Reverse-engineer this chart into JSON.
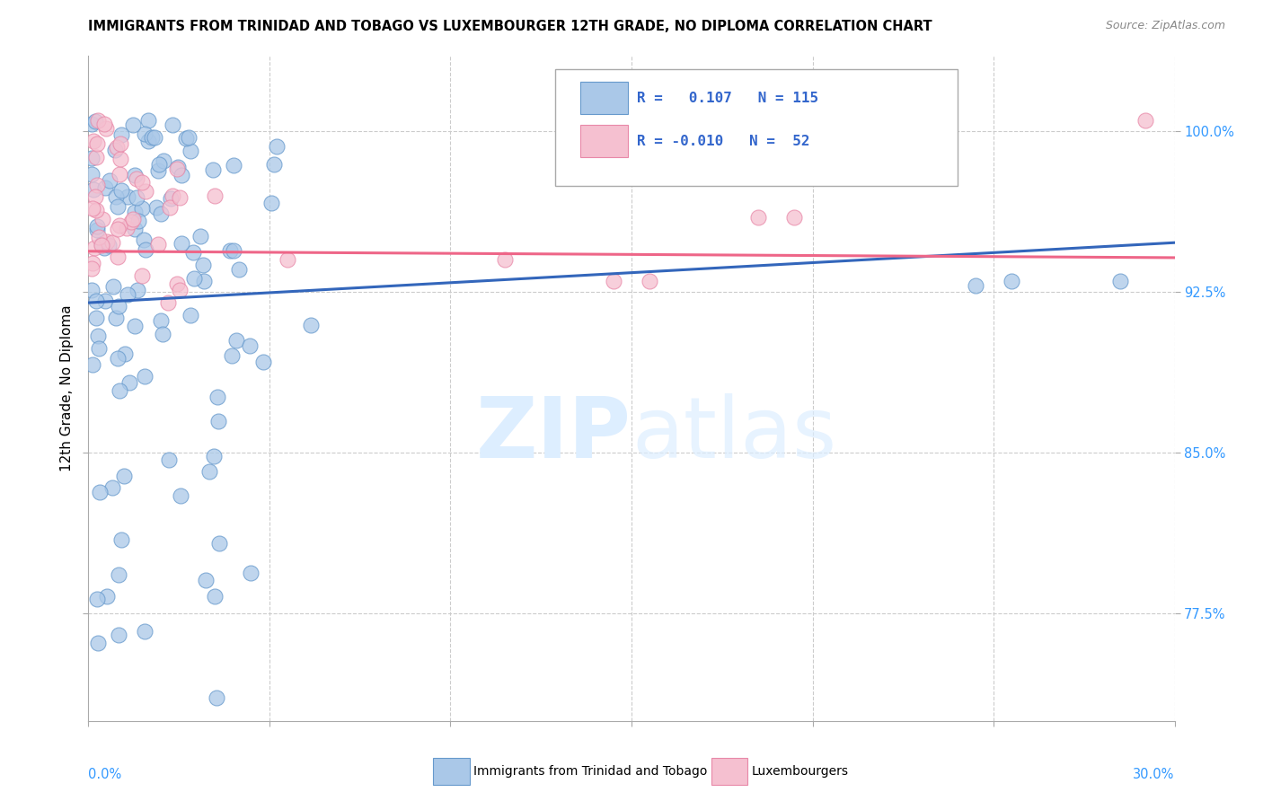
{
  "title": "IMMIGRANTS FROM TRINIDAD AND TOBAGO VS LUXEMBOURGER 12TH GRADE, NO DIPLOMA CORRELATION CHART",
  "source": "Source: ZipAtlas.com",
  "ylabel": "12th Grade, No Diploma",
  "ytick_labels": [
    "100.0%",
    "92.5%",
    "85.0%",
    "77.5%"
  ],
  "ytick_values": [
    1.0,
    0.925,
    0.85,
    0.775
  ],
  "xlim": [
    0.0,
    0.3
  ],
  "ylim": [
    0.725,
    1.035
  ],
  "blue_R": 0.107,
  "blue_N": 115,
  "pink_R": -0.01,
  "pink_N": 52,
  "blue_color": "#aac8e8",
  "blue_edge": "#6699cc",
  "pink_color": "#f5c0d0",
  "pink_edge": "#e888a8",
  "blue_line_color": "#3366bb",
  "pink_line_color": "#ee6688",
  "legend_label_blue": "Immigrants from Trinidad and Tobago",
  "legend_label_pink": "Luxembourgers",
  "blue_line_y0": 0.92,
  "blue_line_y1": 0.948,
  "pink_line_y0": 0.944,
  "pink_line_y1": 0.941
}
